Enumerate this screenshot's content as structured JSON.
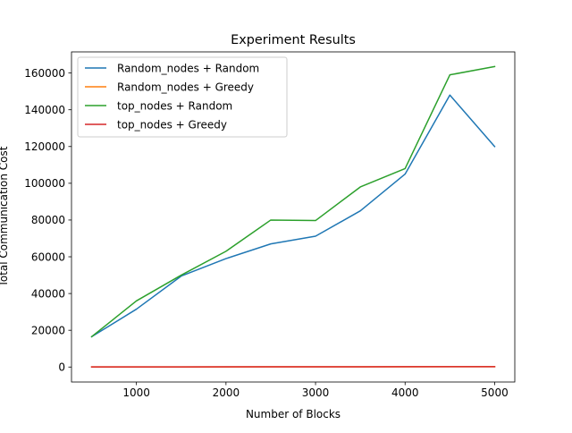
{
  "chart_data": {
    "type": "line",
    "title": "Experiment Results",
    "xlabel": "Number of Blocks",
    "ylabel": "Total Communication Cost",
    "xlim": [
      275,
      5225
    ],
    "ylim": [
      -8150,
      171500
    ],
    "x": [
      500,
      1000,
      1500,
      2000,
      2500,
      3000,
      3500,
      4000,
      4500,
      5000
    ],
    "x_ticks": [
      1000,
      2000,
      3000,
      4000,
      5000
    ],
    "x_tick_labels": [
      "1000",
      "2000",
      "3000",
      "4000",
      "5000"
    ],
    "y_ticks": [
      0,
      20000,
      40000,
      60000,
      80000,
      100000,
      120000,
      140000,
      160000
    ],
    "y_tick_labels": [
      "0",
      "20000",
      "40000",
      "60000",
      "80000",
      "100000",
      "120000",
      "140000",
      "160000"
    ],
    "grid": false,
    "legend_position": "top-left",
    "series": [
      {
        "name": "Random_nodes + Random",
        "color": "#1f77b4",
        "values": [
          16500,
          31500,
          49500,
          59000,
          67000,
          71200,
          85000,
          105000,
          148000,
          120000
        ]
      },
      {
        "name": "Random_nodes + Greedy",
        "color": "#ff7f0e",
        "values": [
          50,
          60,
          70,
          80,
          100,
          120,
          130,
          150,
          170,
          190
        ]
      },
      {
        "name": "top_nodes + Random",
        "color": "#2ca02c",
        "values": [
          16500,
          36000,
          50000,
          63000,
          80000,
          79700,
          98000,
          108000,
          159000,
          163500
        ]
      },
      {
        "name": "top_nodes + Greedy",
        "color": "#d62728",
        "values": [
          60,
          70,
          80,
          100,
          120,
          140,
          150,
          170,
          190,
          210
        ]
      }
    ]
  }
}
